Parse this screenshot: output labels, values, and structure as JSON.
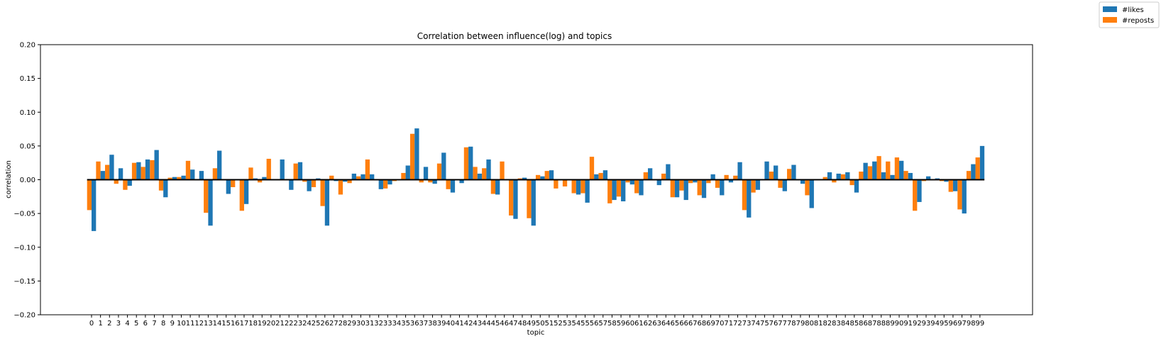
{
  "chart_data": {
    "type": "bar",
    "title": "Correlation between influence(log) and topics",
    "xlabel": "topic",
    "ylabel": "correlation",
    "ylim": [
      -0.2,
      0.2
    ],
    "yticks": [
      "−0.20",
      "−0.15",
      "−0.10",
      "−0.05",
      "0.00",
      "0.05",
      "0.10",
      "0.15",
      "0.20"
    ],
    "ytick_values": [
      -0.2,
      -0.15,
      -0.1,
      -0.05,
      0.0,
      0.05,
      0.1,
      0.15,
      0.2
    ],
    "grid": false,
    "legend_position": "top-right",
    "categories": [
      "0",
      "1",
      "2",
      "3",
      "4",
      "5",
      "6",
      "7",
      "8",
      "9",
      "10",
      "11",
      "12",
      "13",
      "14",
      "15",
      "16",
      "17",
      "18",
      "19",
      "20",
      "21",
      "22",
      "23",
      "24",
      "25",
      "26",
      "27",
      "28",
      "29",
      "30",
      "31",
      "32",
      "33",
      "34",
      "35",
      "36",
      "37",
      "38",
      "39",
      "40",
      "41",
      "42",
      "43",
      "44",
      "45",
      "46",
      "47",
      "48",
      "49",
      "50",
      "51",
      "52",
      "53",
      "54",
      "55",
      "56",
      "57",
      "58",
      "59",
      "60",
      "61",
      "62",
      "63",
      "64",
      "65",
      "66",
      "67",
      "68",
      "69",
      "70",
      "71",
      "72",
      "73",
      "74",
      "75",
      "76",
      "77",
      "78",
      "79",
      "80",
      "81",
      "82",
      "83",
      "84",
      "85",
      "86",
      "87",
      "88",
      "89",
      "90",
      "91",
      "92",
      "93",
      "94",
      "95",
      "96",
      "97",
      "98",
      "99"
    ],
    "series": [
      {
        "name": "#reposts",
        "color": "#ff7f0e",
        "values": [
          -0.045,
          0.027,
          0.022,
          -0.006,
          -0.015,
          0.025,
          0.019,
          0.029,
          -0.016,
          0.003,
          0.004,
          0.028,
          0.0,
          -0.049,
          0.017,
          -0.001,
          -0.011,
          -0.046,
          0.018,
          -0.004,
          0.031,
          0.0,
          0.0,
          0.024,
          -0.003,
          -0.011,
          -0.039,
          0.006,
          -0.022,
          -0.005,
          0.005,
          0.03,
          0.0,
          -0.013,
          -0.002,
          0.01,
          0.068,
          -0.004,
          -0.004,
          0.024,
          -0.014,
          0.0,
          0.048,
          0.019,
          0.017,
          -0.021,
          0.027,
          -0.053,
          0.002,
          -0.057,
          0.007,
          0.013,
          -0.013,
          -0.01,
          -0.02,
          -0.02,
          0.034,
          0.01,
          -0.035,
          -0.025,
          -0.004,
          -0.02,
          0.011,
          0.0,
          0.009,
          -0.026,
          -0.016,
          -0.005,
          -0.023,
          -0.005,
          -0.012,
          0.007,
          0.006,
          -0.045,
          -0.019,
          0.0,
          0.012,
          -0.012,
          0.016,
          0.0,
          -0.023,
          0.0,
          0.004,
          -0.004,
          0.008,
          -0.008,
          0.012,
          0.02,
          0.035,
          0.027,
          0.033,
          0.013,
          -0.046,
          -0.002,
          0.0,
          -0.002,
          -0.018,
          -0.044,
          0.013,
          0.033
        ]
      },
      {
        "name": "#likes",
        "color": "#1f77b4",
        "values": [
          -0.076,
          0.013,
          0.037,
          0.017,
          -0.009,
          0.026,
          0.03,
          0.044,
          -0.026,
          0.004,
          0.006,
          0.015,
          0.013,
          -0.068,
          0.043,
          -0.021,
          0.0,
          -0.036,
          0.002,
          0.004,
          0.0,
          0.03,
          -0.015,
          0.026,
          -0.017,
          0.002,
          -0.068,
          -0.002,
          -0.003,
          0.009,
          0.008,
          0.008,
          -0.014,
          -0.007,
          0.0,
          0.021,
          0.076,
          0.019,
          -0.006,
          0.04,
          -0.019,
          -0.005,
          0.049,
          0.009,
          0.03,
          -0.022,
          0.0,
          -0.058,
          0.003,
          -0.068,
          0.005,
          0.014,
          -0.001,
          -0.001,
          -0.022,
          -0.034,
          0.008,
          0.014,
          -0.03,
          -0.032,
          -0.007,
          -0.023,
          0.017,
          -0.008,
          0.023,
          -0.026,
          -0.03,
          -0.004,
          -0.027,
          0.008,
          -0.023,
          -0.004,
          0.026,
          -0.056,
          -0.015,
          0.027,
          0.021,
          -0.017,
          0.022,
          -0.006,
          -0.042,
          0.0,
          0.011,
          0.009,
          0.011,
          -0.019,
          0.025,
          0.027,
          0.011,
          0.007,
          0.028,
          0.01,
          -0.033,
          0.005,
          0.002,
          -0.003,
          -0.017,
          -0.05,
          0.023,
          0.05
        ]
      }
    ]
  }
}
